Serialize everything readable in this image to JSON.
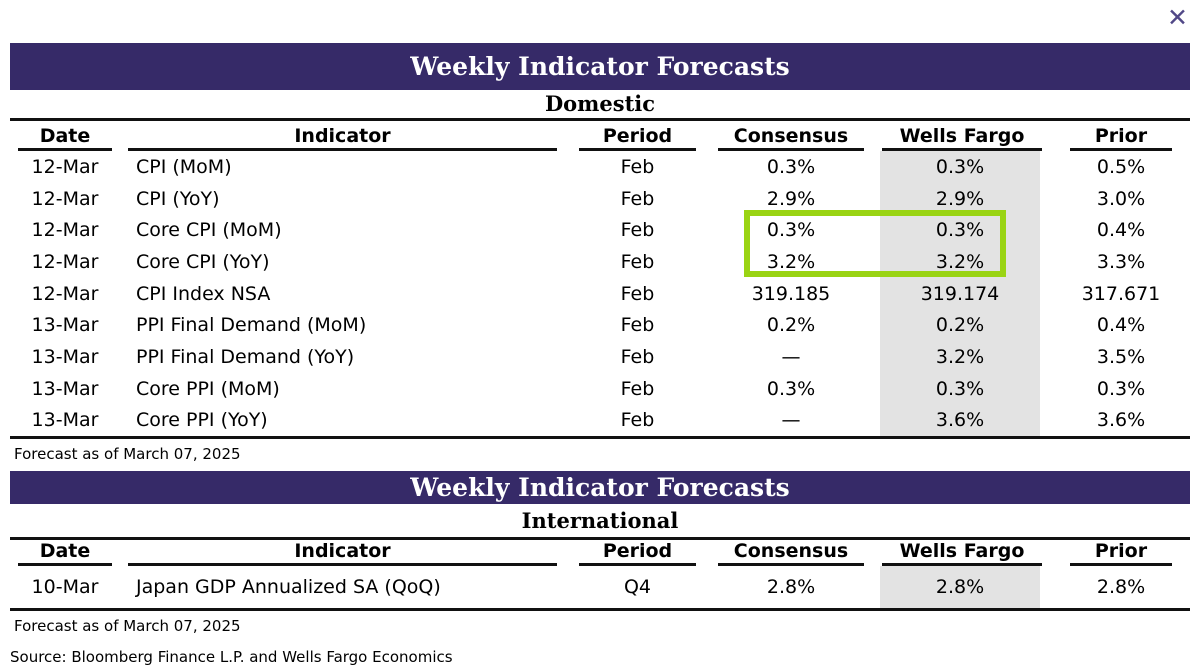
{
  "window": {
    "close_icon": "✕"
  },
  "colors": {
    "header_bar": "#362a68",
    "highlight_green": "#9ad414",
    "wells_fargo_shade": "#e3e3e3",
    "close_icon": "#514887"
  },
  "domestic": {
    "title": "Weekly Indicator Forecasts",
    "subtitle": "Domestic",
    "columns": [
      "Date",
      "Indicator",
      "Period",
      "Consensus",
      "Wells Fargo",
      "Prior"
    ],
    "rows": [
      {
        "date": "12-Mar",
        "indicator": "CPI (MoM)",
        "period": "Feb",
        "consensus": "0.3%",
        "wells_fargo": "0.3%",
        "prior": "0.5%"
      },
      {
        "date": "12-Mar",
        "indicator": "CPI (YoY)",
        "period": "Feb",
        "consensus": "2.9%",
        "wells_fargo": "2.9%",
        "prior": "3.0%"
      },
      {
        "date": "12-Mar",
        "indicator": "Core CPI (MoM)",
        "period": "Feb",
        "consensus": "0.3%",
        "wells_fargo": "0.3%",
        "prior": "0.4%",
        "highlighted": true
      },
      {
        "date": "12-Mar",
        "indicator": "Core CPI (YoY)",
        "period": "Feb",
        "consensus": "3.2%",
        "wells_fargo": "3.2%",
        "prior": "3.3%",
        "highlighted": true
      },
      {
        "date": "12-Mar",
        "indicator": "CPI Index NSA",
        "period": "Feb",
        "consensus": "319.185",
        "wells_fargo": "319.174",
        "prior": "317.671"
      },
      {
        "date": "13-Mar",
        "indicator": "PPI Final Demand (MoM)",
        "period": "Feb",
        "consensus": "0.2%",
        "wells_fargo": "0.2%",
        "prior": "0.4%"
      },
      {
        "date": "13-Mar",
        "indicator": "PPI Final Demand (YoY)",
        "period": "Feb",
        "consensus": "—",
        "wells_fargo": "3.2%",
        "prior": "3.5%"
      },
      {
        "date": "13-Mar",
        "indicator": "Core PPI (MoM)",
        "period": "Feb",
        "consensus": "0.3%",
        "wells_fargo": "0.3%",
        "prior": "0.3%"
      },
      {
        "date": "13-Mar",
        "indicator": "Core PPI (YoY)",
        "period": "Feb",
        "consensus": "—",
        "wells_fargo": "3.6%",
        "prior": "3.6%"
      }
    ],
    "footnote": "Forecast as of March 07, 2025"
  },
  "international": {
    "title": "Weekly Indicator Forecasts",
    "subtitle": "International",
    "columns": [
      "Date",
      "Indicator",
      "Period",
      "Consensus",
      "Wells Fargo",
      "Prior"
    ],
    "rows": [
      {
        "date": "10-Mar",
        "indicator": "Japan GDP Annualized SA (QoQ)",
        "period": "Q4",
        "consensus": "2.8%",
        "wells_fargo": "2.8%",
        "prior": "2.8%"
      }
    ],
    "footnote": "Forecast as of March 07, 2025"
  },
  "source_line": "Source: Bloomberg Finance L.P. and Wells Fargo Economics"
}
